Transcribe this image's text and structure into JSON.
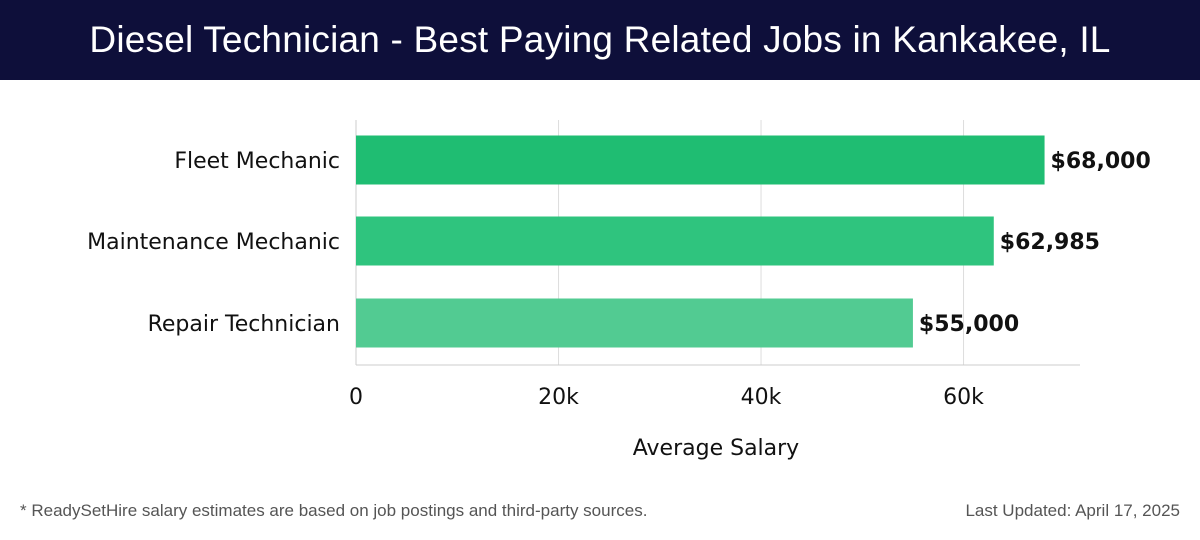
{
  "header": {
    "title": "Diesel Technician - Best Paying Related Jobs in Kankakee, IL"
  },
  "chart_data": {
    "type": "bar",
    "orientation": "horizontal",
    "title": "Diesel Technician - Best Paying Related Jobs in Kankakee, IL",
    "categories": [
      "Fleet Mechanic",
      "Maintenance Mechanic",
      "Repair Technician"
    ],
    "values": [
      68000,
      62985,
      55000
    ],
    "value_labels": [
      "$68,000",
      "$62,985",
      "$55,000"
    ],
    "colors": [
      "#1fbd72",
      "#2fc47e",
      "#52cb92"
    ],
    "xlabel": "Average Salary",
    "ylabel": "",
    "xlim": [
      0,
      71500
    ],
    "xticks": [
      0,
      20000,
      40000,
      60000
    ],
    "xtick_labels": [
      "0",
      "20k",
      "40k",
      "60k"
    ],
    "grid": true
  },
  "footer": {
    "note": "* ReadySetHire salary estimates are based on job postings and third-party sources.",
    "updated": "Last Updated: April 17, 2025"
  }
}
